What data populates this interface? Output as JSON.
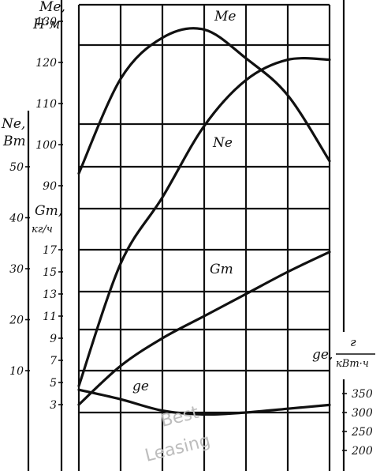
{
  "chart_data": {
    "type": "line",
    "x": [
      0,
      1,
      2,
      3,
      4,
      5,
      6
    ],
    "grid": true,
    "series": [
      {
        "name": "Me",
        "axis": "Me",
        "values": [
          93,
          116,
          126,
          128,
          121,
          112,
          96
        ]
      },
      {
        "name": "Ne",
        "axis": "Ne",
        "values": [
          7,
          31,
          44,
          58,
          67,
          71,
          71
        ]
      },
      {
        "name": "Gт",
        "axis": "Gt",
        "values": [
          3,
          6.5,
          9,
          11,
          13,
          15,
          16.8
        ]
      },
      {
        "name": "ge",
        "axis": "ge",
        "values": [
          360,
          335,
          305,
          295,
          300,
          310,
          320
        ]
      }
    ],
    "axes": {
      "Me": {
        "label_line1": "Mе,",
        "label_line2": "Н·м",
        "ticks": [
          "130",
          "120",
          "110",
          "100",
          "90"
        ]
      },
      "Ne": {
        "label_line1": "Nе,",
        "label_line2": "Вт",
        "ticks": [
          "50",
          "40",
          "30",
          "20",
          "10"
        ]
      },
      "Gt": {
        "label_line1": "Gт,",
        "label_line2": "кг/ч",
        "ticks": [
          "17",
          "15",
          "13",
          "11",
          "9",
          "7",
          "5",
          "3"
        ]
      },
      "ge": {
        "label": "gе,",
        "unit_num": "г",
        "unit_den": "кВт·ч",
        "ticks": [
          "350",
          "300",
          "250",
          "200"
        ]
      }
    },
    "curve_labels": {
      "Me": "Mе",
      "Ne": "Nе",
      "Gt": "Gт",
      "ge": "gе"
    }
  },
  "watermark": {
    "line1": "Best",
    "line2": "Leasing"
  }
}
